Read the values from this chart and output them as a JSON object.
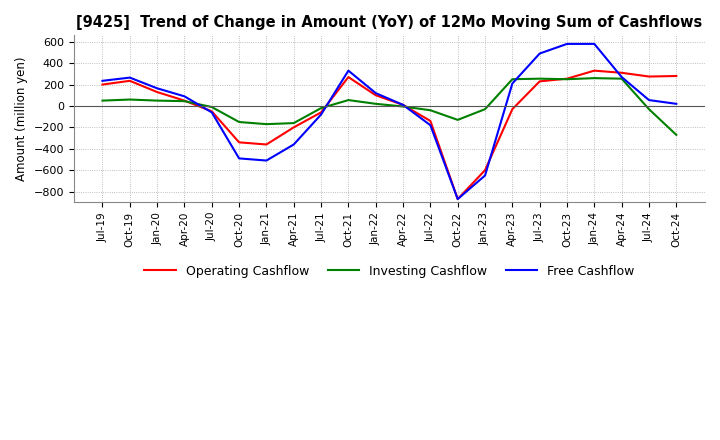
{
  "title": "[9425]  Trend of Change in Amount (YoY) of 12Mo Moving Sum of Cashflows",
  "ylabel": "Amount (million yen)",
  "ylim": [
    -900,
    660
  ],
  "yticks": [
    -800,
    -600,
    -400,
    -200,
    0,
    200,
    400,
    600
  ],
  "x_labels": [
    "Jul-19",
    "Oct-19",
    "Jan-20",
    "Apr-20",
    "Jul-20",
    "Oct-20",
    "Jan-21",
    "Apr-21",
    "Jul-21",
    "Oct-21",
    "Jan-22",
    "Apr-22",
    "Jul-22",
    "Oct-22",
    "Jan-23",
    "Apr-23",
    "Jul-23",
    "Oct-23",
    "Jan-24",
    "Apr-24",
    "Jul-24",
    "Oct-24"
  ],
  "operating": [
    200,
    235,
    130,
    50,
    -50,
    -340,
    -360,
    -200,
    -60,
    270,
    100,
    10,
    -140,
    -870,
    -600,
    -30,
    230,
    255,
    330,
    310,
    275,
    280
  ],
  "investing": [
    50,
    60,
    50,
    45,
    -10,
    -150,
    -170,
    -160,
    -20,
    55,
    20,
    -5,
    -40,
    -130,
    -30,
    250,
    255,
    250,
    260,
    255,
    -30,
    -270
  ],
  "free": [
    235,
    265,
    165,
    90,
    -60,
    -490,
    -510,
    -360,
    -80,
    330,
    120,
    10,
    -180,
    -870,
    -650,
    210,
    490,
    580,
    580,
    270,
    55,
    20
  ],
  "colors": {
    "operating": "#ff0000",
    "investing": "#008000",
    "free": "#0000ff"
  },
  "legend": [
    "Operating Cashflow",
    "Investing Cashflow",
    "Free Cashflow"
  ],
  "background": "#ffffff",
  "grid_color": "#aaaaaa",
  "grid_style": ":"
}
